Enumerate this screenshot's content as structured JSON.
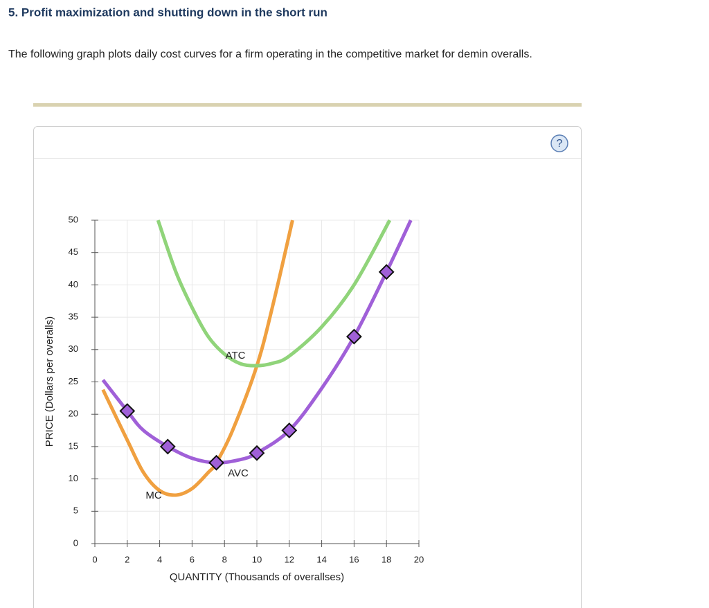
{
  "header": {
    "title": "5. Profit maximization and shutting down in the short run",
    "text": "The following graph plots daily cost curves for a firm operating in the competitive market for demin overalls.",
    "help": "?"
  },
  "chart_data": {
    "type": "line",
    "xlabel": "QUANTITY (Thousands of overallses)",
    "ylabel": "PRICE (Dollars per overalls)",
    "xlim": [
      0,
      20
    ],
    "ylim": [
      0,
      50
    ],
    "xticks": [
      0,
      2,
      4,
      6,
      8,
      10,
      12,
      14,
      16,
      18,
      20
    ],
    "yticks": [
      0,
      5,
      10,
      15,
      20,
      25,
      30,
      35,
      40,
      45,
      50
    ],
    "grid": true,
    "series": [
      {
        "name": "MC",
        "color": "#f0a040",
        "x": [
          0.5,
          2,
          3,
          4,
          5,
          6,
          7,
          7.5,
          8.5,
          10,
          11,
          12.2
        ],
        "values": [
          23.8,
          16,
          11,
          8.2,
          7.5,
          8.5,
          11,
          12.5,
          17.5,
          27.5,
          37,
          50
        ]
      },
      {
        "name": "ATC",
        "color": "#90d47a",
        "x": [
          3.9,
          5,
          6,
          7,
          8,
          9,
          10,
          11,
          12,
          14,
          16,
          18.2
        ],
        "values": [
          50,
          42,
          36.5,
          32,
          29.3,
          27.8,
          27.5,
          27.9,
          29,
          33.5,
          40,
          50
        ]
      },
      {
        "name": "AVC",
        "color": "#a060d8",
        "x": [
          0.5,
          2,
          3,
          4.5,
          6,
          7.5,
          9,
          10,
          12,
          14,
          16,
          18,
          19.5
        ],
        "values": [
          25.3,
          20.5,
          17.5,
          15,
          13.2,
          12.5,
          13,
          14,
          17.5,
          24,
          32,
          42,
          50
        ],
        "markers": {
          "x": [
            2,
            4.5,
            7.5,
            10,
            12,
            16,
            18
          ],
          "values": [
            20.5,
            15,
            12.5,
            14,
            17.5,
            32,
            42
          ]
        }
      }
    ]
  }
}
